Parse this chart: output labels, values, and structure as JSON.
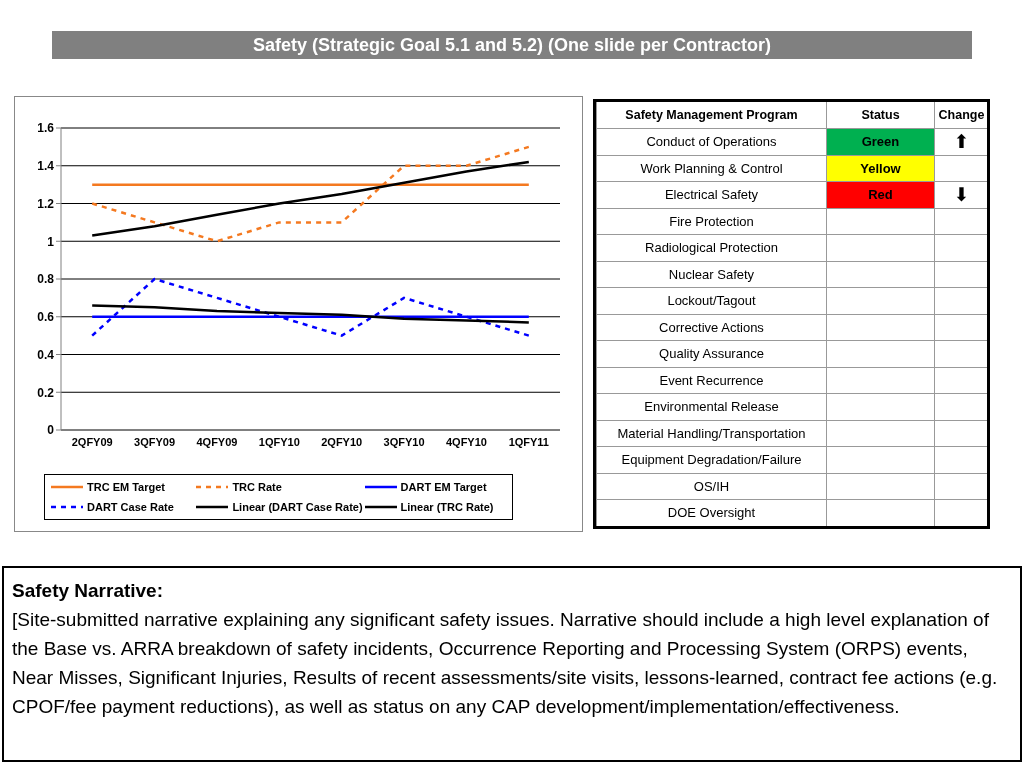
{
  "chart_data": [
    {
      "type": "line",
      "title": "Safety (Strategic Goal 5.1 and 5.2) (One slide per Contractor)",
      "categories": [
        "2QFY09",
        "3QFY09",
        "4QFY09",
        "1QFY10",
        "2QFY10",
        "3QFY10",
        "4QFY10",
        "1QFY11"
      ],
      "series": [
        {
          "name": "TRC EM Target",
          "color": "#f47920",
          "values": [
            1.3,
            1.3,
            1.3,
            1.3,
            1.3,
            1.3,
            1.3,
            1.3
          ]
        },
        {
          "name": "TRC Rate",
          "color": "#f47920",
          "line_style": "dashed",
          "values": [
            1.2,
            1.1,
            1.0,
            1.1,
            1.1,
            1.4,
            1.4,
            1.5
          ]
        },
        {
          "name": "DART EM Target",
          "color": "#0000ff",
          "values": [
            0.6,
            0.6,
            0.6,
            0.6,
            0.6,
            0.6,
            0.6,
            0.6
          ]
        },
        {
          "name": "DART Case Rate",
          "color": "#0000ff",
          "line_style": "dashed",
          "values": [
            0.5,
            0.8,
            0.7,
            0.6,
            0.5,
            0.7,
            0.6,
            0.5
          ]
        },
        {
          "name": "Linear (DART Case Rate)",
          "color": "#000000",
          "values": [
            0.66,
            0.65,
            0.63,
            0.62,
            0.61,
            0.59,
            0.58,
            0.57
          ]
        },
        {
          "name": "Linear (TRC Rate)",
          "color": "#000000",
          "values": [
            1.03,
            1.08,
            1.14,
            1.2,
            1.25,
            1.31,
            1.37,
            1.42
          ]
        }
      ],
      "ylim": [
        0,
        1.6
      ],
      "yticks": [
        0,
        0.2,
        0.4,
        0.6,
        0.8,
        1,
        1.2,
        1.4,
        1.6
      ],
      "grid": "y",
      "legend": "bottom",
      "marker": "none"
    },
    {
      "type": "other",
      "categories": [
        "Safety Management Program",
        "Status",
        "Change"
      ],
      "y_categories": [
        "Conduct of Operations",
        "Work Planning & Control",
        "Electrical Safety",
        "Fire Protection",
        "Radiological Protection",
        "Nuclear Safety",
        "Lockout/Tagout",
        "Corrective Actions",
        "Quality Assurance",
        "Event Recurrence",
        "Environmental Release",
        "Material Handling/Transportation",
        "Equipment Degradation/Failure",
        "OS/IH",
        "DOE Oversight"
      ],
      "cell_labels": [
        [
          "Green",
          "⬆"
        ],
        [
          "Yellow",
          null
        ],
        [
          "Red",
          "⬇"
        ],
        [
          null,
          null
        ],
        [
          null,
          null
        ],
        [
          null,
          null
        ],
        [
          null,
          null
        ],
        [
          null,
          null
        ],
        [
          null,
          null
        ],
        [
          null,
          null
        ],
        [
          null,
          null
        ],
        [
          null,
          null
        ],
        [
          null,
          null
        ],
        [
          null,
          null
        ],
        [
          null,
          null
        ]
      ],
      "colors": [
        [
          "#00b050",
          null
        ],
        [
          "#ffff00",
          null
        ],
        [
          "#ff0000",
          null
        ],
        [
          null,
          null
        ],
        [
          null,
          null
        ],
        [
          null,
          null
        ],
        [
          null,
          null
        ],
        [
          null,
          null
        ],
        [
          null,
          null
        ],
        [
          null,
          null
        ],
        [
          null,
          null
        ],
        [
          null,
          null
        ],
        [
          null,
          null
        ],
        [
          null,
          null
        ],
        [
          null,
          null
        ]
      ]
    },
    {
      "type": "other",
      "title": "Safety Narrative:",
      "annotations": [
        "[Site-submitted narrative explaining any significant safety issues. Narrative should include a high level explanation of the Base vs. ARRA breakdown of safety incidents, Occurrence Reporting and Processing System (ORPS) events, Near Misses, Significant Injuries, Results of recent assessments/site visits, lessons-learned, contract fee actions (e.g. CPOF/fee payment reductions), as well as status on any CAP development/implementation/effectiveness."
      ]
    }
  ]
}
